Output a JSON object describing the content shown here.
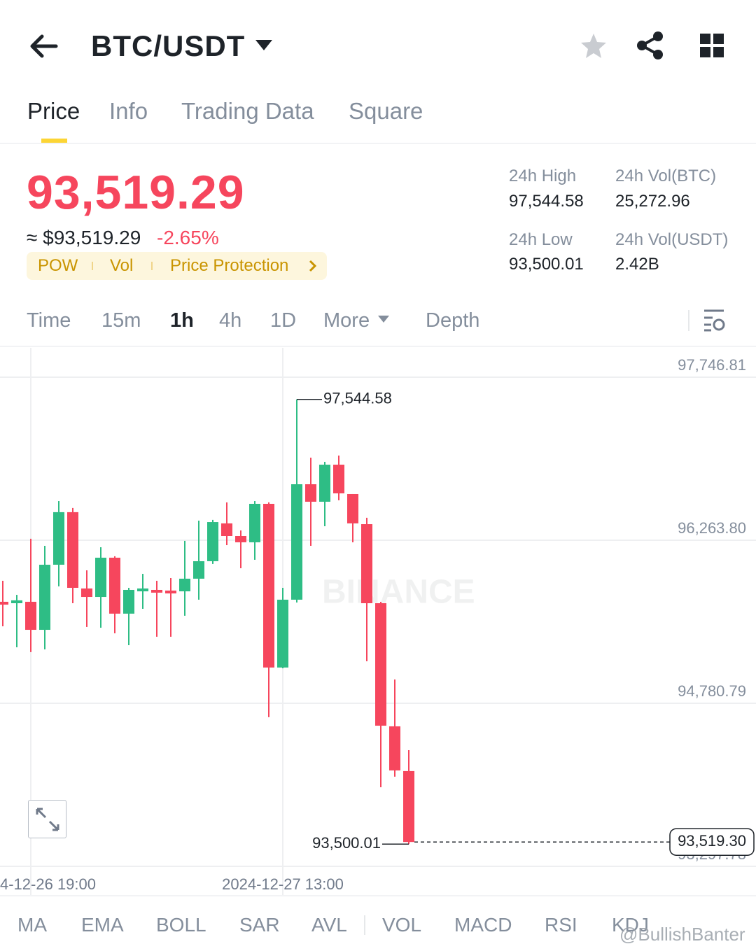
{
  "header": {
    "pair": "BTC/USDT"
  },
  "tabs": [
    "Price",
    "Info",
    "Trading Data",
    "Square"
  ],
  "price": {
    "last": "93,519.29",
    "usd": "≈ $93,519.29",
    "change": "-2.65%"
  },
  "tags": [
    "POW",
    "Vol",
    "Price Protection"
  ],
  "stats": [
    {
      "label": "24h High",
      "value": "97,544.58"
    },
    {
      "label": "24h Vol(BTC)",
      "value": "25,272.96"
    },
    {
      "label": "24h Low",
      "value": "93,500.01"
    },
    {
      "label": "24h Vol(USDT)",
      "value": "2.42B"
    }
  ],
  "intervals": [
    "Time",
    "15m",
    "1h",
    "4h",
    "1D",
    "More",
    "Depth"
  ],
  "chart_data": {
    "type": "candlestick",
    "watermark": "BINANCE",
    "up_color": "#2ebd85",
    "down_color": "#f6465d",
    "open": [
      95704,
      95691,
      95704,
      95449,
      96041,
      96519,
      95825,
      95748,
      96105,
      95596,
      95799,
      95812,
      95806,
      95799,
      95914,
      96073,
      96417,
      96302,
      96245,
      96595,
      95106,
      95723,
      96773,
      96614,
      96951,
      96684,
      96410,
      95691,
      94571,
      94164
    ],
    "high": [
      95895,
      95767,
      96277,
      96213,
      96620,
      96557,
      95990,
      96200,
      96118,
      95831,
      95958,
      95895,
      95920,
      96258,
      96442,
      96449,
      96608,
      96353,
      96620,
      96608,
      95831,
      97544.58,
      97015,
      96977,
      97034,
      96684,
      96468,
      95704,
      94997,
      94354
    ],
    "low": [
      95481,
      95290,
      95246,
      95271,
      95844,
      95691,
      95475,
      95468,
      95417,
      95309,
      95640,
      95386,
      95386,
      95577,
      95723,
      96048,
      96219,
      96009,
      96086,
      94654,
      95099,
      95697,
      96213,
      96391,
      96627,
      96245,
      95163,
      94017,
      94113,
      93500.01
    ],
    "close": [
      95678,
      95717,
      95449,
      96041,
      96519,
      95831,
      95748,
      96105,
      95596,
      95812,
      95825,
      95787,
      95780,
      95914,
      96073,
      96429,
      96302,
      96245,
      96595,
      95106,
      95723,
      96773,
      96614,
      96951,
      96690,
      96417,
      95691,
      94577,
      94170,
      93519.29
    ],
    "ylim": [
      93297.78,
      97746.81
    ],
    "yticks": [
      {
        "value": 97746.81,
        "label": "97,746.81"
      },
      {
        "value": 96263.8,
        "label": "96,263.80"
      },
      {
        "value": 94780.79,
        "label": "94,780.79"
      },
      {
        "value": 93297.78,
        "label": "93,297.78"
      }
    ],
    "xticks": [
      {
        "value": 2,
        "label": "4-12-26 19:00"
      },
      {
        "value": 20,
        "label": "2024-12-27 13:00"
      }
    ],
    "high_label": {
      "value": 97544.58,
      "label": "97,544.58",
      "index": 21
    },
    "low_label": {
      "value": 93500.01,
      "label": "93,500.01",
      "index": 29
    },
    "last_price": {
      "value": 93519.3,
      "label": "93,519.30"
    },
    "grid": true
  },
  "indicators": [
    "MA",
    "EMA",
    "BOLL",
    "SAR",
    "AVL",
    "VOL",
    "MACD",
    "RSI",
    "KDJ"
  ],
  "credit": "@BullishBanter"
}
